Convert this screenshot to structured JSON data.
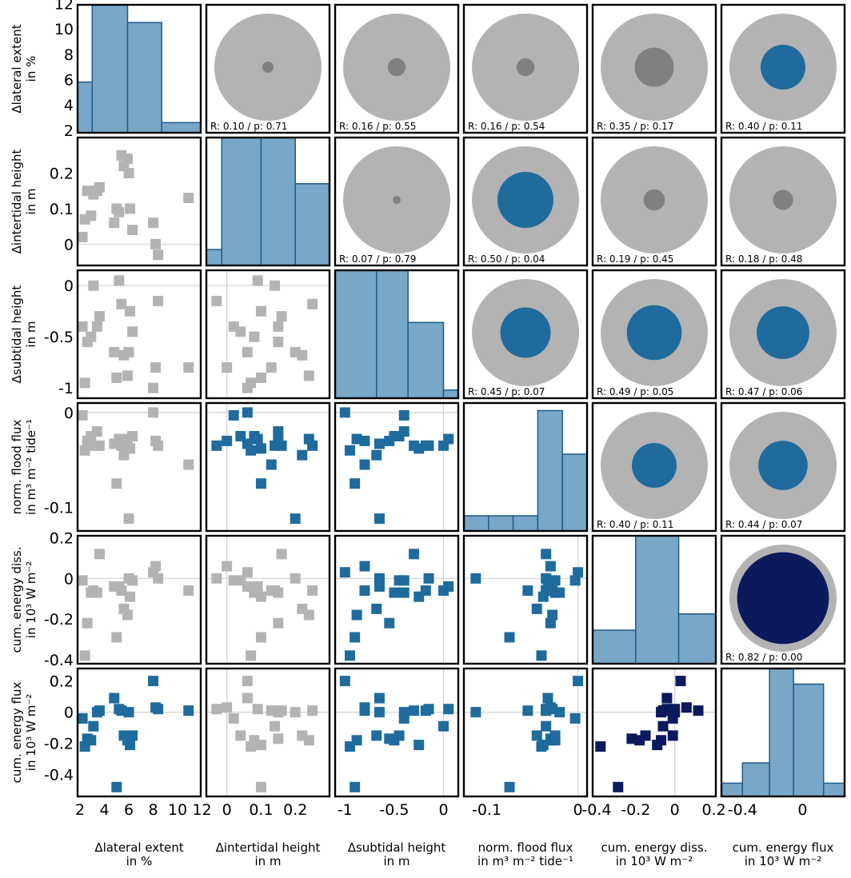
{
  "chart_data": {
    "type": "scatter",
    "layout": "correlation pair-plot matrix (lower: scatter, diagonal: histogram, upper: circle glyph of correlation)",
    "variables": [
      {
        "key": "lat",
        "label_lines": [
          "Δlateral extent",
          "in %"
        ],
        "ylabel_lines": [
          "Δlateral extent",
          "in %"
        ],
        "range": [
          1.8,
          11.9
        ],
        "ticks": [
          2,
          4,
          6,
          8,
          10,
          12
        ],
        "tick_labels": [
          "2",
          "4",
          "6",
          "8",
          "10",
          "12"
        ],
        "ytick_values": [
          2,
          4,
          6,
          8,
          10,
          12
        ],
        "ytick_labels": [
          "2",
          "4",
          "6",
          "8",
          "10",
          "12"
        ]
      },
      {
        "key": "int",
        "label_lines": [
          "Δintertidal height",
          "in m"
        ],
        "ylabel_lines": [
          "Δintertidal height",
          "in m"
        ],
        "range": [
          -0.06,
          0.3
        ],
        "ticks": [
          0,
          0.1,
          0.2
        ],
        "tick_labels": [
          "0",
          "0.1",
          "0.2"
        ],
        "ytick_values": [
          0,
          0.1,
          0.2
        ],
        "ytick_labels": [
          "0",
          "0.1",
          "0.2"
        ]
      },
      {
        "key": "sub",
        "label_lines": [
          "Δsubtidal height",
          "in m"
        ],
        "ylabel_lines": [
          "Δsubtidal height",
          "in m"
        ],
        "range": [
          -1.1,
          0.15
        ],
        "ticks": [
          -1,
          -0.5,
          0
        ],
        "tick_labels": [
          "-1",
          "-0.5",
          "0"
        ],
        "ytick_values": [
          -1,
          -0.5,
          0
        ],
        "ytick_labels": [
          "-1",
          "-0.5",
          "0"
        ]
      },
      {
        "key": "flood",
        "label_lines": [
          "norm. flood flux",
          "in m³ m⁻² tide⁻¹"
        ],
        "ylabel_lines": [
          "norm. flood flux",
          "in m³ m⁻² tide⁻¹"
        ],
        "range": [
          -0.125,
          0.01
        ],
        "ticks": [
          -0.1,
          0
        ],
        "tick_labels": [
          "-0.1",
          "0"
        ],
        "ytick_values": [
          -0.1,
          0
        ],
        "ytick_labels": [
          "-0.1",
          "0"
        ]
      },
      {
        "key": "diss",
        "label_lines": [
          "cum. energy diss.",
          "in 10³ W m⁻²"
        ],
        "ylabel_lines": [
          "cum. energy diss.",
          "in 10³ W m⁻²"
        ],
        "range": [
          -0.42,
          0.21
        ],
        "ticks": [
          -0.4,
          -0.2,
          0,
          0.2
        ],
        "tick_labels": [
          "-0.4",
          "-0.2",
          "0",
          "0.2"
        ],
        "ytick_values": [
          -0.4,
          -0.2,
          0,
          0.2
        ],
        "ytick_labels": [
          "-0.4",
          "-0.2",
          "0",
          "0.2"
        ]
      },
      {
        "key": "eflux",
        "label_lines": [
          "cum. energy flux",
          "in 10³ W m⁻²"
        ],
        "ylabel_lines": [
          "cum. energy flux",
          "in 10³ W m⁻²"
        ],
        "range": [
          -0.54,
          0.28
        ],
        "ticks": [
          -0.4,
          0
        ],
        "tick_labels": [
          "-0.4",
          "0"
        ],
        "ytick_values": [
          -0.4,
          -0.2,
          0,
          0.2
        ],
        "ytick_labels": [
          "-0.4",
          "-0.2",
          "0",
          "0.2"
        ]
      }
    ],
    "samples": {
      "lat": [
        2.2,
        2.4,
        2.6,
        2.9,
        3.1,
        3.4,
        3.6,
        4.8,
        5.0,
        5.2,
        5.4,
        5.6,
        5.9,
        6.0,
        6.1,
        6.3,
        8.0,
        8.2,
        8.4,
        10.9
      ],
      "int": [
        0.02,
        0.07,
        0.15,
        0.08,
        0.14,
        0.15,
        0.16,
        0.06,
        0.1,
        0.09,
        0.25,
        0.22,
        0.24,
        0.2,
        0.1,
        0.04,
        0.06,
        0.0,
        -0.03,
        0.13
      ],
      "sub": [
        -0.4,
        -0.95,
        -0.55,
        -0.5,
        0.0,
        -0.4,
        -0.3,
        -0.65,
        -0.9,
        0.05,
        -0.18,
        -0.68,
        -0.88,
        -0.65,
        -0.25,
        -0.45,
        -1.0,
        -0.8,
        -0.15,
        -0.8
      ],
      "flood": [
        -0.003,
        -0.04,
        -0.03,
        -0.025,
        -0.035,
        -0.02,
        -0.035,
        -0.033,
        -0.075,
        -0.028,
        -0.035,
        -0.045,
        -0.028,
        -0.112,
        -0.038,
        -0.025,
        0.0,
        -0.03,
        -0.035,
        -0.055
      ],
      "diss": [
        -0.01,
        -0.38,
        -0.22,
        -0.07,
        -0.06,
        -0.07,
        0.12,
        -0.04,
        -0.29,
        -0.04,
        -0.06,
        -0.15,
        -0.18,
        0.0,
        -0.09,
        -0.01,
        0.03,
        0.06,
        0.0,
        -0.06
      ],
      "eflux": [
        -0.04,
        -0.22,
        -0.17,
        -0.18,
        -0.09,
        0.0,
        0.01,
        0.09,
        -0.48,
        0.02,
        0.01,
        -0.15,
        -0.18,
        0.0,
        -0.21,
        -0.15,
        0.2,
        0.03,
        0.02,
        0.01
      ]
    },
    "histograms": [
      {
        "edges": [
          1.8,
          3.0,
          5.9,
          8.7,
          11.9
        ],
        "counts": [
          5.8,
          12.0,
          10.5,
          2.6
        ]
      },
      {
        "edges": [
          -0.06,
          -0.015,
          0.1,
          0.2,
          0.3
        ],
        "counts": [
          -0.015,
          0.3,
          0.3,
          0.17
        ]
      },
      {
        "edges": [
          -1.1,
          -0.68,
          -0.36,
          0.0,
          0.15
        ],
        "counts": [
          0.15,
          0.15,
          -0.36,
          -1.02
        ]
      },
      {
        "edges": [
          -0.125,
          -0.098,
          -0.071,
          -0.044,
          -0.017,
          0.01
        ],
        "counts": [
          -0.109,
          -0.109,
          -0.109,
          0.002,
          -0.044
        ]
      },
      {
        "edges": [
          -0.42,
          -0.2,
          0.02,
          0.21
        ],
        "counts": [
          -0.255,
          0.21,
          -0.175
        ]
      },
      {
        "edges": [
          -0.54,
          -0.4,
          -0.22,
          -0.06,
          0.14,
          0.28
        ],
        "counts": [
          -0.455,
          -0.325,
          0.28,
          0.18,
          -0.455
        ]
      }
    ],
    "correlations": [
      {
        "row": 0,
        "col": 1,
        "R": "0.10",
        "p": "0.71",
        "label": "R: 0.10 / p: 0.71"
      },
      {
        "row": 0,
        "col": 2,
        "R": "0.16",
        "p": "0.55",
        "label": "R: 0.16 / p: 0.55"
      },
      {
        "row": 0,
        "col": 3,
        "R": "0.16",
        "p": "0.54",
        "label": "R: 0.16 / p: 0.54"
      },
      {
        "row": 0,
        "col": 4,
        "R": "0.35",
        "p": "0.17",
        "label": "R: 0.35 / p: 0.17"
      },
      {
        "row": 0,
        "col": 5,
        "R": "0.40",
        "p": "0.11",
        "label": "R: 0.40 / p: 0.11"
      },
      {
        "row": 1,
        "col": 2,
        "R": "0.07",
        "p": "0.79",
        "label": "R: 0.07 / p: 0.79"
      },
      {
        "row": 1,
        "col": 3,
        "R": "0.50",
        "p": "0.04",
        "label": "R: 0.50 / p: 0.04"
      },
      {
        "row": 1,
        "col": 4,
        "R": "0.19",
        "p": "0.45",
        "label": "R: 0.19 / p: 0.45"
      },
      {
        "row": 1,
        "col": 5,
        "R": "0.18",
        "p": "0.48",
        "label": "R: 0.18 / p: 0.48"
      },
      {
        "row": 2,
        "col": 3,
        "R": "0.45",
        "p": "0.07",
        "label": "R: 0.45 / p: 0.07"
      },
      {
        "row": 2,
        "col": 4,
        "R": "0.49",
        "p": "0.05",
        "label": "R: 0.49 / p: 0.05"
      },
      {
        "row": 2,
        "col": 5,
        "R": "0.47",
        "p": "0.06",
        "label": "R: 0.47 / p: 0.06"
      },
      {
        "row": 3,
        "col": 4,
        "R": "0.40",
        "p": "0.11",
        "label": "R: 0.40 / p: 0.11"
      },
      {
        "row": 3,
        "col": 5,
        "R": "0.44",
        "p": "0.07",
        "label": "R: 0.44 / p: 0.07"
      },
      {
        "row": 4,
        "col": 5,
        "R": "0.82",
        "p": "0.00",
        "label": "R: 0.82 / p: 0.00"
      }
    ],
    "colors": {
      "weak": "#808080",
      "moderate": "#1f6b9d",
      "strong": "#0b1a5c",
      "outer_circle": "#b3b3b3",
      "weak_marker": "#b3b3b3",
      "hist_fill": "#78a7c8",
      "hist_edge": "#1f5a87",
      "zero_line": "#d0d0d0"
    },
    "grid": false
  }
}
